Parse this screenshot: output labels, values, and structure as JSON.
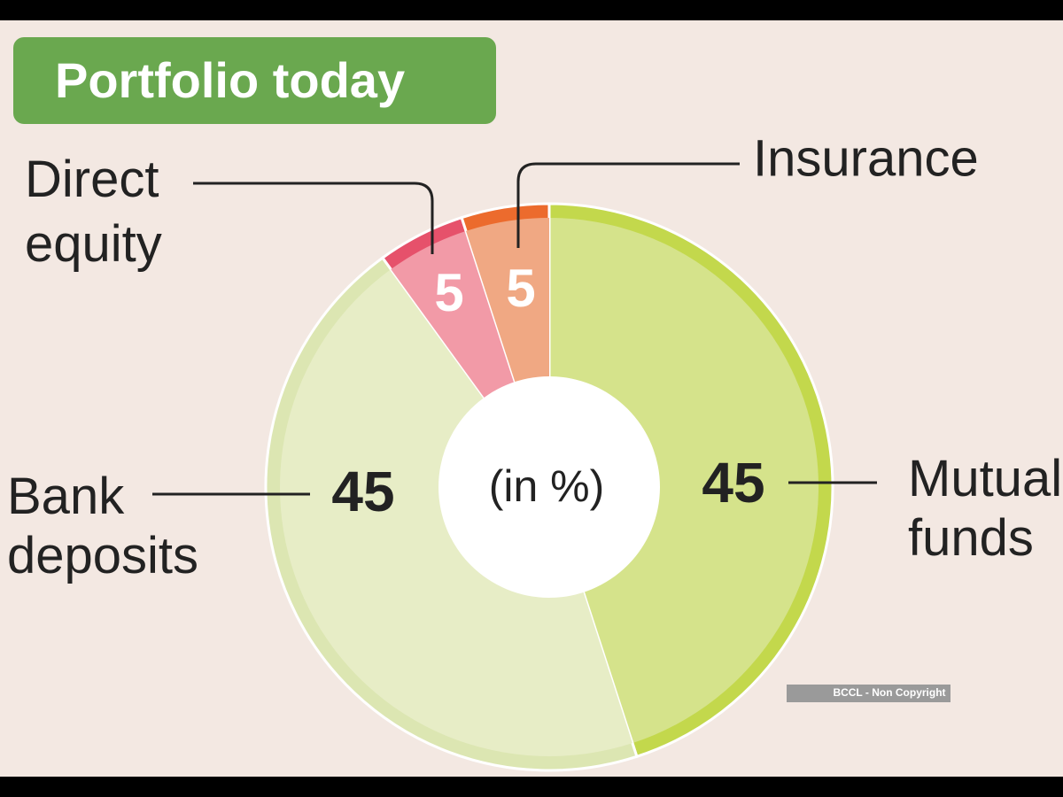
{
  "chart_data": {
    "type": "pie",
    "title": "Portfolio today",
    "center_label": "(in %)",
    "categories": [
      "Mutual funds",
      "Bank deposits",
      "Direct equity",
      "Insurance"
    ],
    "values": [
      45,
      45,
      5,
      5
    ],
    "colors": [
      "#d5e38b",
      "#e7edc6",
      "#f29aa7",
      "#f0a883"
    ],
    "ring_colors": [
      "#c3d84c",
      "#dce6b2",
      "#e6516b",
      "#ec6b2d"
    ]
  },
  "watermark": "BCCL - Non Copyright"
}
